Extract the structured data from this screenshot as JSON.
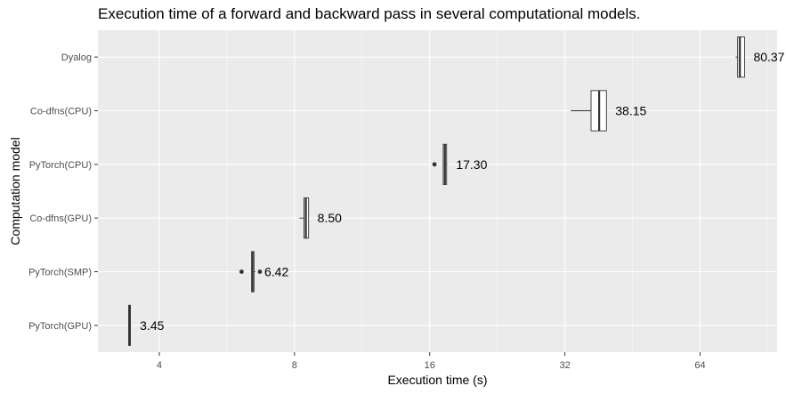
{
  "chart_data": {
    "type": "boxplot",
    "title": "Execution time of a forward and backward pass in several computational models.",
    "xlabel": "Execution time (s)",
    "ylabel": "Computation model",
    "x_scale": "log2",
    "xlim": [
      2.92,
      95
    ],
    "x_ticks": [
      4,
      8,
      16,
      32,
      64
    ],
    "x_tick_labels": [
      "4",
      "8",
      "16",
      "32",
      "64"
    ],
    "grid": true,
    "categories": [
      "PyTorch(GPU)",
      "PyTorch(SMP)",
      "Co-dfns(GPU)",
      "PyTorch(CPU)",
      "Co-dfns(CPU)",
      "Dyalog"
    ],
    "boxes": [
      {
        "category": "PyTorch(GPU)",
        "min": 3.42,
        "q1": 3.42,
        "median": 3.43,
        "q3": 3.45,
        "max": 3.46,
        "outliers": [],
        "label": "3.45"
      },
      {
        "category": "PyTorch(SMP)",
        "min": 6.4,
        "q1": 6.42,
        "median": 6.45,
        "q3": 6.5,
        "max": 6.55,
        "outliers": [
          6.1,
          6.7
        ],
        "label": "6.42"
      },
      {
        "category": "Co-dfns(GPU)",
        "min": 8.2,
        "q1": 8.4,
        "median": 8.48,
        "q3": 8.6,
        "max": 8.6,
        "outliers": [],
        "label": "8.50"
      },
      {
        "category": "PyTorch(CPU)",
        "min": 17.1,
        "q1": 17.15,
        "median": 17.3,
        "q3": 17.45,
        "max": 17.5,
        "outliers": [
          16.4
        ],
        "label": "17.30"
      },
      {
        "category": "Co-dfns(CPU)",
        "min": 33.0,
        "q1": 36.6,
        "median": 38.15,
        "q3": 39.6,
        "max": 39.6,
        "outliers": [],
        "label": "38.15"
      },
      {
        "category": "Dyalog",
        "min": 76.8,
        "q1": 77.6,
        "median": 78.5,
        "q3": 80.4,
        "max": 80.4,
        "outliers": [],
        "label": "80.37"
      }
    ],
    "colors": {
      "panel": "#EBEBEB",
      "grid_major": "#FFFFFF",
      "box_fill": "#FFFFFF",
      "box_line": "#333333",
      "axis_text": "#4D4D4D"
    }
  }
}
